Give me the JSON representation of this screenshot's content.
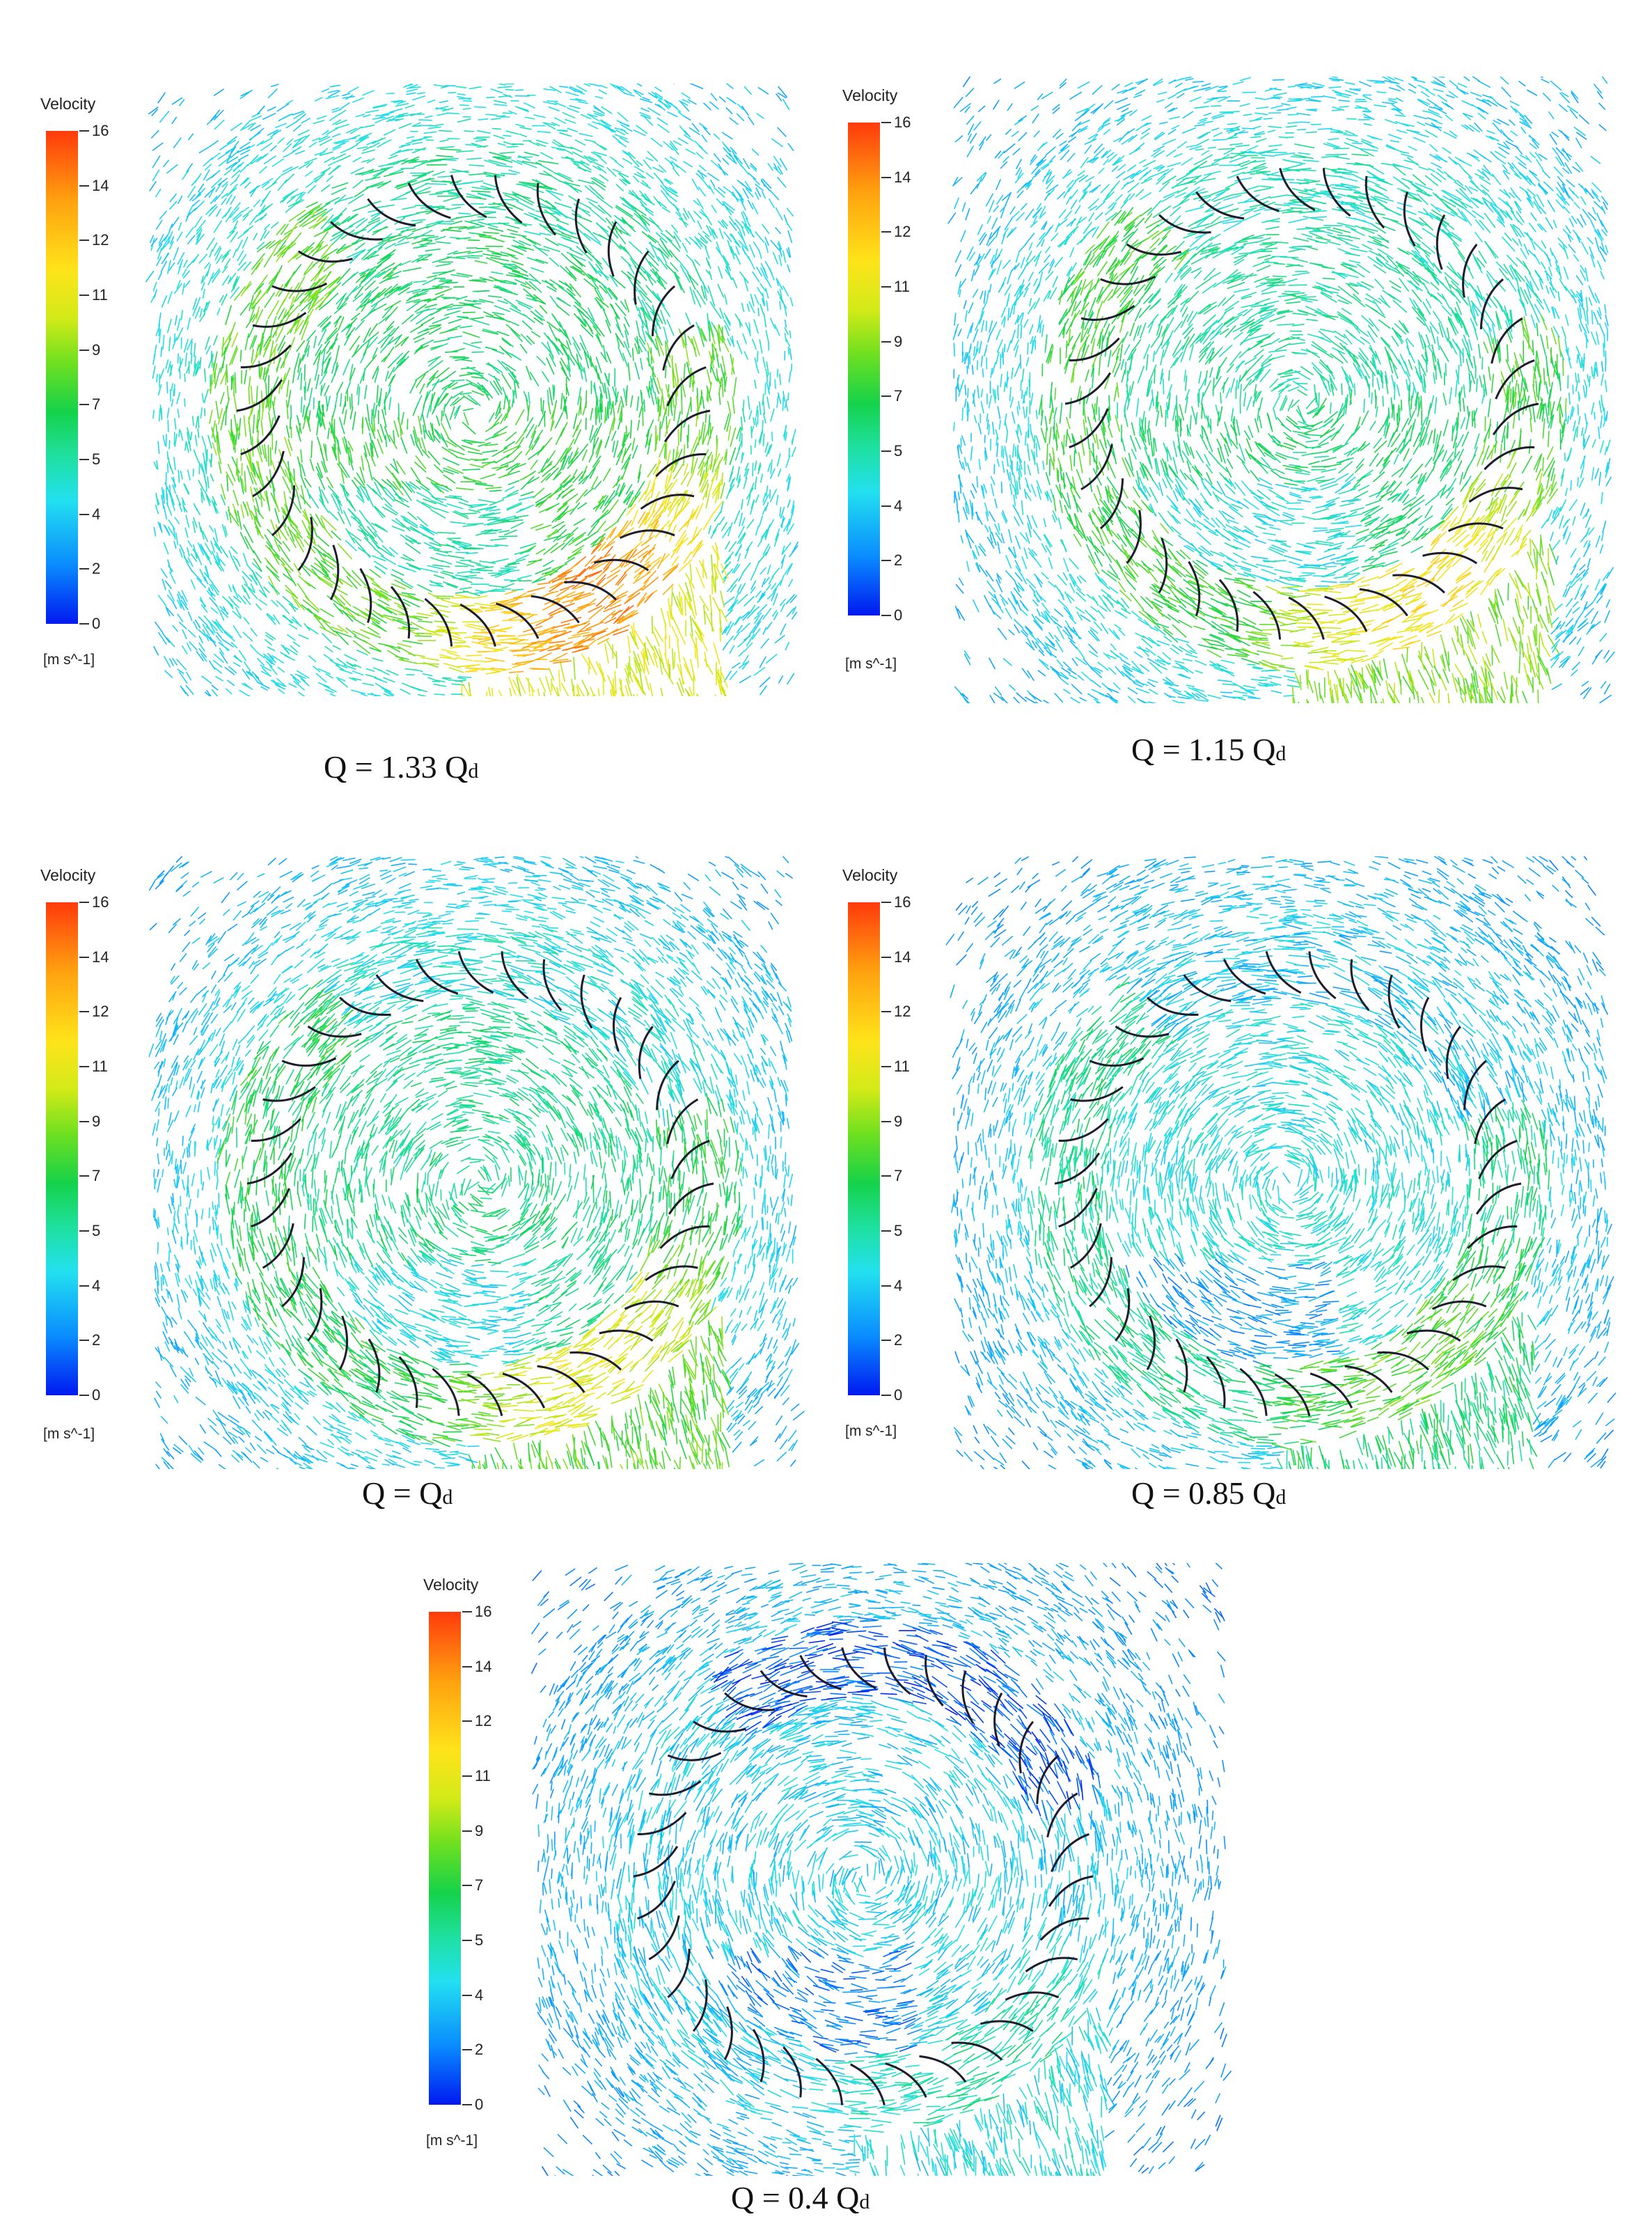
{
  "legend": {
    "title": "Velocity",
    "unit": "[m s^-1]",
    "ticks": [
      "16",
      "14",
      "12",
      "11",
      "9",
      "7",
      "5",
      "4",
      "2",
      "0"
    ]
  },
  "panels": [
    {
      "q_main": "Q = 1.33 Q",
      "q_sub": "d"
    },
    {
      "q_main": "Q = 1.15 Q",
      "q_sub": "d"
    },
    {
      "q_main": "Q = Q",
      "q_sub": "d"
    },
    {
      "q_main": "Q = 0.85 Q",
      "q_sub": "d"
    },
    {
      "q_main": "Q = 0.4 Q",
      "q_sub": "d"
    }
  ],
  "colors": {
    "blade": "#1c1c2c",
    "background": "#ffffff"
  }
}
